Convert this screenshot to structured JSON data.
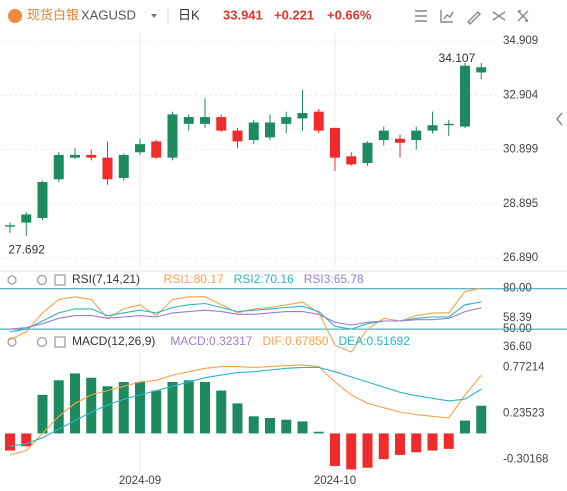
{
  "header": {
    "name": "现货白银",
    "symbol": "XAGUSD",
    "period": "日K",
    "price": "33.941",
    "change": "+0.221",
    "change_pct": "+0.66%"
  },
  "chart_data": [
    {
      "type": "candlestick",
      "open": [
        28.05,
        28.2,
        28.37,
        29.8,
        30.6,
        30.7,
        30.6,
        29.85,
        30.8,
        31.2,
        30.6,
        31.85,
        31.85,
        32.1,
        31.6,
        31.25,
        31.35,
        31.85,
        32.05,
        32.3,
        31.7,
        30.65,
        30.4,
        31.25,
        31.3,
        31.25,
        31.6,
        31.8,
        31.75,
        33.75
      ],
      "high": [
        28.2,
        28.6,
        29.75,
        30.8,
        30.95,
        30.9,
        31.2,
        30.75,
        31.3,
        31.25,
        32.3,
        32.2,
        32.8,
        32.2,
        31.7,
        32.0,
        32.2,
        32.3,
        33.1,
        32.4,
        31.7,
        30.8,
        31.2,
        31.75,
        31.45,
        31.75,
        32.3,
        32.0,
        34.1,
        34.107
      ],
      "low": [
        27.82,
        27.692,
        28.3,
        29.7,
        30.55,
        30.5,
        29.6,
        29.75,
        30.7,
        30.55,
        30.5,
        31.6,
        31.7,
        31.55,
        30.95,
        31.1,
        31.25,
        31.5,
        31.6,
        31.5,
        30.1,
        30.3,
        30.3,
        31.05,
        30.6,
        30.9,
        31.5,
        31.4,
        31.7,
        33.5
      ],
      "close": [
        28.1,
        28.5,
        29.7,
        30.7,
        30.7,
        30.6,
        29.8,
        30.7,
        31.1,
        30.6,
        32.2,
        32.1,
        32.1,
        31.6,
        31.2,
        31.9,
        31.9,
        32.1,
        32.25,
        31.6,
        30.6,
        30.35,
        31.15,
        31.6,
        31.15,
        31.6,
        31.8,
        31.85,
        34.0,
        33.941
      ],
      "up_color": "#1e8a5f",
      "down_color": "#f02b2b",
      "ylim": [
        26.52,
        35.32
      ],
      "yticks": [
        34.909,
        32.904,
        30.899,
        28.895,
        {
          "value": 26.89,
          "label": "26.890"
        }
      ],
      "max_label": "34.107",
      "min_label": "27.692",
      "grid": true
    },
    {
      "type": "line",
      "title": "RSI(7,14,21)",
      "series": [
        {
          "name": "RSI1:80.17",
          "color": "#f5a24b",
          "values": [
            42,
            48,
            62,
            72,
            74,
            72,
            58,
            65,
            68,
            60,
            72,
            74,
            74,
            68,
            62,
            65,
            66,
            68,
            70,
            62,
            38,
            33,
            50,
            58,
            56,
            60,
            62,
            62,
            78,
            80.17
          ]
        },
        {
          "name": "RSI2:70.16",
          "color": "#2cb5c9",
          "values": [
            48,
            50,
            56,
            62,
            65,
            65,
            60,
            62,
            64,
            62,
            66,
            68,
            69,
            66,
            63,
            64,
            65,
            66,
            67,
            63,
            52,
            50,
            54,
            56,
            56,
            58,
            59,
            59,
            68,
            70.16
          ]
        },
        {
          "name": "RSI3:65.78",
          "color": "#9a7fd1",
          "values": [
            50,
            51,
            54,
            58,
            60,
            60,
            58,
            59,
            60,
            59,
            62,
            63,
            64,
            63,
            61,
            61,
            62,
            63,
            63,
            61,
            55,
            53,
            55,
            56,
            56,
            57,
            57,
            58,
            63,
            65.78
          ]
        }
      ],
      "ylim": [
        30,
        82
      ],
      "yticks": [
        {
          "value": 80,
          "label": "80.00"
        },
        58.39,
        {
          "value": 50,
          "label": "50.00"
        },
        {
          "value": 36.6,
          "label": "36.60"
        }
      ],
      "reference_lines": [
        80,
        50
      ],
      "reference_color": "#2a9db5"
    },
    {
      "type": "macd",
      "title": "MACD(12,26,9)",
      "categories": [
        null,
        null,
        null,
        null,
        null,
        null,
        null,
        null,
        "2024-09",
        null,
        null,
        null,
        null,
        null,
        null,
        null,
        null,
        null,
        null,
        null,
        "2024-10",
        null,
        null,
        null,
        null,
        null,
        null,
        null,
        null,
        null
      ],
      "series": [
        {
          "name": "MACD:0.32317",
          "color": "#9a7fd1",
          "up_color": "#1e8a5f",
          "down_color": "#f02b2b",
          "values": [
            -0.2,
            -0.15,
            0.45,
            0.62,
            0.7,
            0.65,
            0.55,
            0.6,
            0.6,
            0.5,
            0.6,
            0.62,
            0.6,
            0.5,
            0.35,
            0.2,
            0.18,
            0.16,
            0.14,
            0.02,
            -0.38,
            -0.42,
            -0.4,
            -0.3,
            -0.25,
            -0.22,
            -0.2,
            -0.18,
            0.15,
            0.32317
          ]
        },
        {
          "name": "DIF:0.67850",
          "color": "#f5a24b",
          "values": [
            -0.25,
            -0.2,
            0.0,
            0.2,
            0.35,
            0.45,
            0.5,
            0.55,
            0.6,
            0.62,
            0.68,
            0.72,
            0.76,
            0.78,
            0.78,
            0.77,
            0.78,
            0.79,
            0.8,
            0.78,
            0.6,
            0.45,
            0.35,
            0.3,
            0.25,
            0.22,
            0.2,
            0.18,
            0.45,
            0.6785
          ]
        },
        {
          "name": "DEA:0.51692",
          "color": "#2cb5c9",
          "values": [
            -0.15,
            -0.12,
            -0.05,
            0.05,
            0.15,
            0.25,
            0.33,
            0.4,
            0.45,
            0.5,
            0.55,
            0.6,
            0.65,
            0.68,
            0.71,
            0.72,
            0.74,
            0.76,
            0.77,
            0.77,
            0.72,
            0.66,
            0.6,
            0.54,
            0.48,
            0.44,
            0.41,
            0.38,
            0.4,
            0.51692
          ]
        }
      ],
      "ylim": [
        -0.45,
        0.95
      ],
      "yticks": [
        0.77214,
        0.23523,
        -0.30168
      ]
    }
  ]
}
